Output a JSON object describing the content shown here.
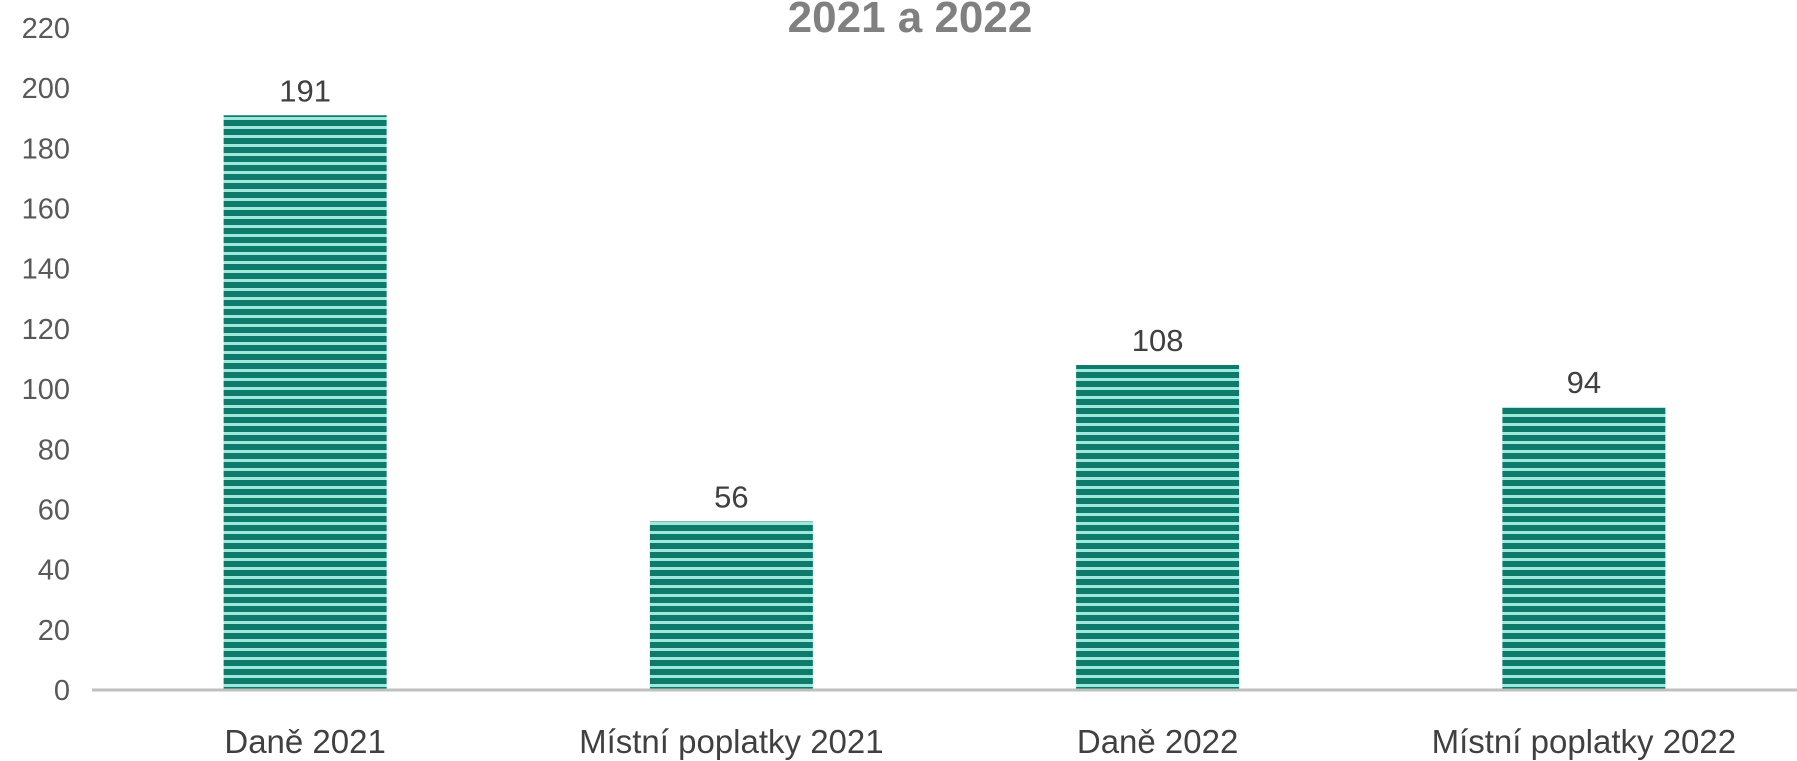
{
  "chart_data": {
    "type": "bar",
    "title": "2021 a 2022",
    "categories": [
      "Daně 2021",
      "Místní poplatky 2021",
      "Daně 2022",
      "Místní poplatky 2022"
    ],
    "values": [
      191,
      56,
      108,
      94
    ],
    "data_labels": [
      "191",
      "56",
      "108",
      "94"
    ],
    "ylim": [
      0,
      220
    ],
    "yticks": [
      0,
      20,
      40,
      60,
      80,
      100,
      120,
      140,
      160,
      180,
      200,
      220
    ],
    "ytick_labels": [
      "0",
      "20",
      "40",
      "60",
      "80",
      "100",
      "120",
      "140",
      "160",
      "180",
      "200",
      "220"
    ],
    "xlabel": "",
    "ylabel": "",
    "grid": false,
    "legend": "none",
    "colors": {
      "bar_dark": "#0e7a6c",
      "bar_light": "#9fe8dc",
      "axis": "#bfbfbf"
    }
  }
}
